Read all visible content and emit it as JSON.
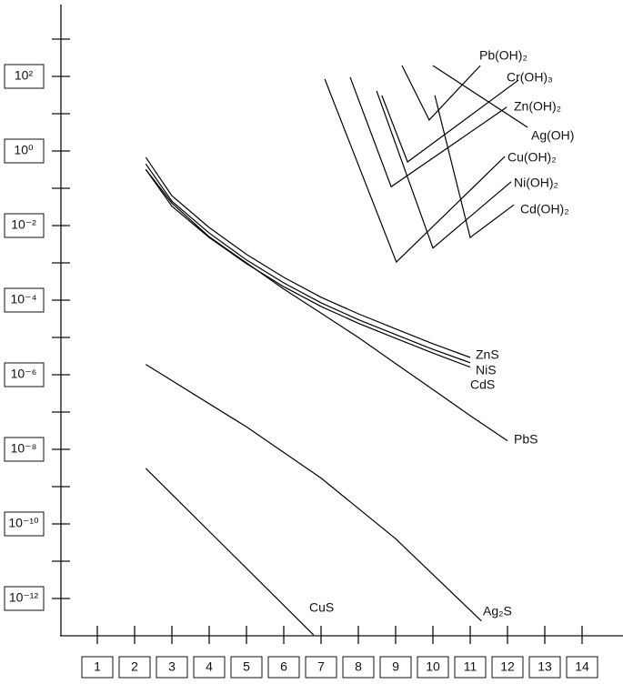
{
  "chart_data": {
    "type": "line",
    "color": "#000000",
    "yscale": "log",
    "grid": false,
    "xlim": [
      0,
      15
    ],
    "xticks": [
      1,
      2,
      3,
      4,
      5,
      6,
      7,
      8,
      9,
      10,
      11,
      12,
      13,
      14
    ],
    "ylim": [
      1e-13,
      10000
    ],
    "yticks": [
      {
        "value": 100,
        "label": "10²"
      },
      {
        "value": 1,
        "label": "10⁰"
      },
      {
        "value": 0.01,
        "label": "10⁻²"
      },
      {
        "value": 0.0001,
        "label": "10⁻⁴"
      },
      {
        "value": 1e-06,
        "label": "10⁻⁶"
      },
      {
        "value": 1e-08,
        "label": "10⁻⁸"
      },
      {
        "value": 1e-10,
        "label": "10⁻¹⁰"
      },
      {
        "value": 1e-12,
        "label": "10⁻¹²"
      }
    ],
    "yminorticks": [
      1000,
      10,
      0.1,
      0.001,
      1e-05,
      1e-07,
      1e-09,
      1e-11
    ],
    "series": [
      {
        "name": "ZnS",
        "x": [
          2.3,
          3,
          4,
          5,
          6,
          7,
          8,
          9,
          10,
          11
        ],
        "values": [
          0.68,
          0.063,
          0.0089,
          0.0017,
          0.00041,
          0.00012,
          4.3e-05,
          1.7e-05,
          6.8e-06,
          2.9e-06
        ]
      },
      {
        "name": "NiS",
        "x": [
          2.3,
          3,
          4,
          5,
          6,
          7,
          8,
          9,
          10,
          11
        ],
        "values": [
          0.45,
          0.045,
          0.0063,
          0.0012,
          0.00029,
          8.5e-05,
          3e-05,
          1.2e-05,
          4.8e-06,
          2.1e-06
        ]
      },
      {
        "name": "CdS",
        "x": [
          2.3,
          3,
          4,
          5,
          6,
          7,
          8,
          9,
          10,
          11
        ],
        "values": [
          0.32,
          0.033,
          0.0048,
          0.00095,
          0.00023,
          6.8e-05,
          2.4e-05,
          9.5e-06,
          3.8e-06,
          1.6e-06
        ]
      },
      {
        "name": "PbS",
        "x": [
          2.3,
          3,
          4,
          5,
          6,
          7,
          8,
          9,
          10,
          11,
          12
        ],
        "values": [
          0.32,
          0.04,
          0.005,
          0.001,
          0.0002,
          4.5e-05,
          1e-05,
          2e-06,
          4e-07,
          8e-08,
          1.7e-08
        ]
      },
      {
        "name": "Ag₂S",
        "x": [
          2.3,
          5,
          7,
          9,
          11.3
        ],
        "values": [
          1.9e-06,
          4e-08,
          1.7e-09,
          4e-11,
          2.5e-13
        ]
      },
      {
        "name": "CuS",
        "x": [
          2.3,
          6.8
        ],
        "values": [
          3.1e-09,
          1.05e-13
        ]
      },
      {
        "name": "Pb(OH)₂",
        "x": [
          9.17,
          9.9,
          11.27
        ],
        "values": [
          195,
          6.8,
          195
        ]
      },
      {
        "name": "Cr(OH)₃",
        "x": [
          8.63,
          9.32,
          12.29
        ],
        "values": [
          31,
          0.51,
          79
        ]
      },
      {
        "name": "Zn(OH)₂",
        "x": [
          7.78,
          8.88,
          11.98
        ],
        "values": [
          95,
          0.11,
          15
        ]
      },
      {
        "name": "Ag(OH)",
        "x": [
          10.0,
          12.54
        ],
        "values": [
          195,
          4.3
        ]
      },
      {
        "name": "Cu(OH)₂",
        "x": [
          7.1,
          9.02,
          11.93
        ],
        "values": [
          85,
          0.00105,
          0.71
        ]
      },
      {
        "name": "Ni(OH)₂",
        "x": [
          8.49,
          10.0,
          12.1
        ],
        "values": [
          41,
          0.0025,
          0.15
        ]
      },
      {
        "name": "Cd(OH)₂",
        "x": [
          10.05,
          11.0,
          12.17
        ],
        "values": [
          31,
          0.0048,
          0.036
        ]
      }
    ]
  }
}
